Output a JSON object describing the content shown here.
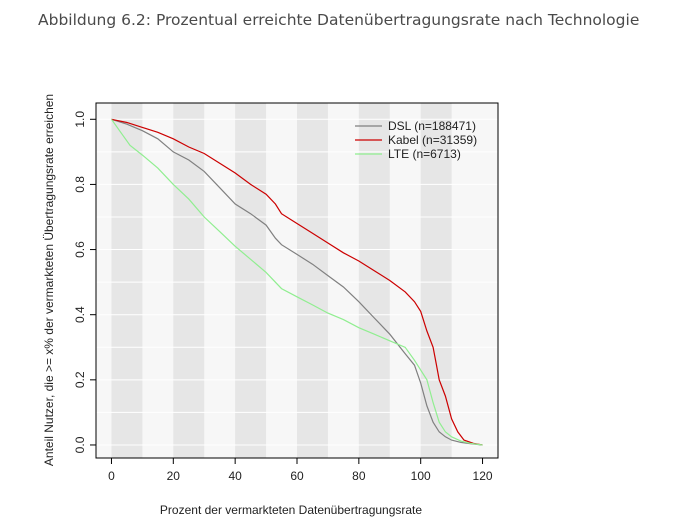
{
  "page": {
    "title": "Abbildung 6.2: Prozentual erreichte Datenübertragungsrate nach Technologie"
  },
  "chart_data": {
    "type": "line",
    "xlabel": "Prozent der vermarkteten Datenübertragungsrate",
    "ylabel": "Anteil Nutzer, die >= x% der vermarkteten Übertragungsrate erreichen",
    "xlim": [
      -5,
      125
    ],
    "ylim": [
      -0.04,
      1.05
    ],
    "xticks": [
      "0",
      "20",
      "40",
      "60",
      "80",
      "100",
      "120"
    ],
    "yticks": [
      "0.0",
      "0.2",
      "0.4",
      "0.6",
      "0.8",
      "1.0"
    ],
    "grid": true,
    "background_bands": "alternating grey vertical bands every 10 units",
    "legend_position": "top-right",
    "series": [
      {
        "name": "DSL (n=188471)",
        "color": "#808080",
        "points": [
          [
            0,
            1.0
          ],
          [
            5,
            0.985
          ],
          [
            10,
            0.965
          ],
          [
            15,
            0.94
          ],
          [
            20,
            0.9
          ],
          [
            25,
            0.875
          ],
          [
            30,
            0.84
          ],
          [
            35,
            0.79
          ],
          [
            40,
            0.74
          ],
          [
            45,
            0.71
          ],
          [
            50,
            0.675
          ],
          [
            53,
            0.635
          ],
          [
            55,
            0.615
          ],
          [
            60,
            0.585
          ],
          [
            65,
            0.555
          ],
          [
            70,
            0.52
          ],
          [
            75,
            0.485
          ],
          [
            80,
            0.44
          ],
          [
            85,
            0.39
          ],
          [
            90,
            0.34
          ],
          [
            95,
            0.28
          ],
          [
            98,
            0.245
          ],
          [
            100,
            0.19
          ],
          [
            102,
            0.12
          ],
          [
            104,
            0.07
          ],
          [
            106,
            0.04
          ],
          [
            108,
            0.025
          ],
          [
            110,
            0.015
          ],
          [
            113,
            0.008
          ],
          [
            116,
            0.004
          ],
          [
            120,
            0.0
          ]
        ]
      },
      {
        "name": "Kabel (n=31359)",
        "color": "#cc0000",
        "points": [
          [
            0,
            1.0
          ],
          [
            5,
            0.99
          ],
          [
            10,
            0.975
          ],
          [
            15,
            0.96
          ],
          [
            20,
            0.94
          ],
          [
            25,
            0.915
          ],
          [
            30,
            0.895
          ],
          [
            35,
            0.865
          ],
          [
            40,
            0.835
          ],
          [
            45,
            0.8
          ],
          [
            50,
            0.77
          ],
          [
            53,
            0.74
          ],
          [
            55,
            0.71
          ],
          [
            60,
            0.68
          ],
          [
            65,
            0.65
          ],
          [
            70,
            0.62
          ],
          [
            75,
            0.59
          ],
          [
            80,
            0.565
          ],
          [
            85,
            0.535
          ],
          [
            90,
            0.505
          ],
          [
            95,
            0.47
          ],
          [
            98,
            0.44
          ],
          [
            100,
            0.41
          ],
          [
            102,
            0.35
          ],
          [
            104,
            0.3
          ],
          [
            105,
            0.25
          ],
          [
            106,
            0.2
          ],
          [
            108,
            0.15
          ],
          [
            110,
            0.08
          ],
          [
            112,
            0.04
          ],
          [
            114,
            0.015
          ],
          [
            117,
            0.005
          ],
          [
            120,
            0.0
          ]
        ]
      },
      {
        "name": "LTE (n=6713)",
        "color": "#90ee90",
        "points": [
          [
            0,
            1.0
          ],
          [
            3,
            0.96
          ],
          [
            6,
            0.92
          ],
          [
            10,
            0.89
          ],
          [
            15,
            0.85
          ],
          [
            20,
            0.8
          ],
          [
            25,
            0.755
          ],
          [
            30,
            0.7
          ],
          [
            35,
            0.655
          ],
          [
            40,
            0.61
          ],
          [
            45,
            0.57
          ],
          [
            50,
            0.53
          ],
          [
            55,
            0.48
          ],
          [
            60,
            0.455
          ],
          [
            65,
            0.43
          ],
          [
            70,
            0.405
          ],
          [
            75,
            0.385
          ],
          [
            80,
            0.36
          ],
          [
            85,
            0.34
          ],
          [
            90,
            0.32
          ],
          [
            95,
            0.3
          ],
          [
            98,
            0.26
          ],
          [
            100,
            0.23
          ],
          [
            102,
            0.2
          ],
          [
            104,
            0.13
          ],
          [
            106,
            0.07
          ],
          [
            108,
            0.04
          ],
          [
            110,
            0.025
          ],
          [
            113,
            0.012
          ],
          [
            116,
            0.005
          ],
          [
            120,
            0.0
          ]
        ]
      }
    ]
  }
}
